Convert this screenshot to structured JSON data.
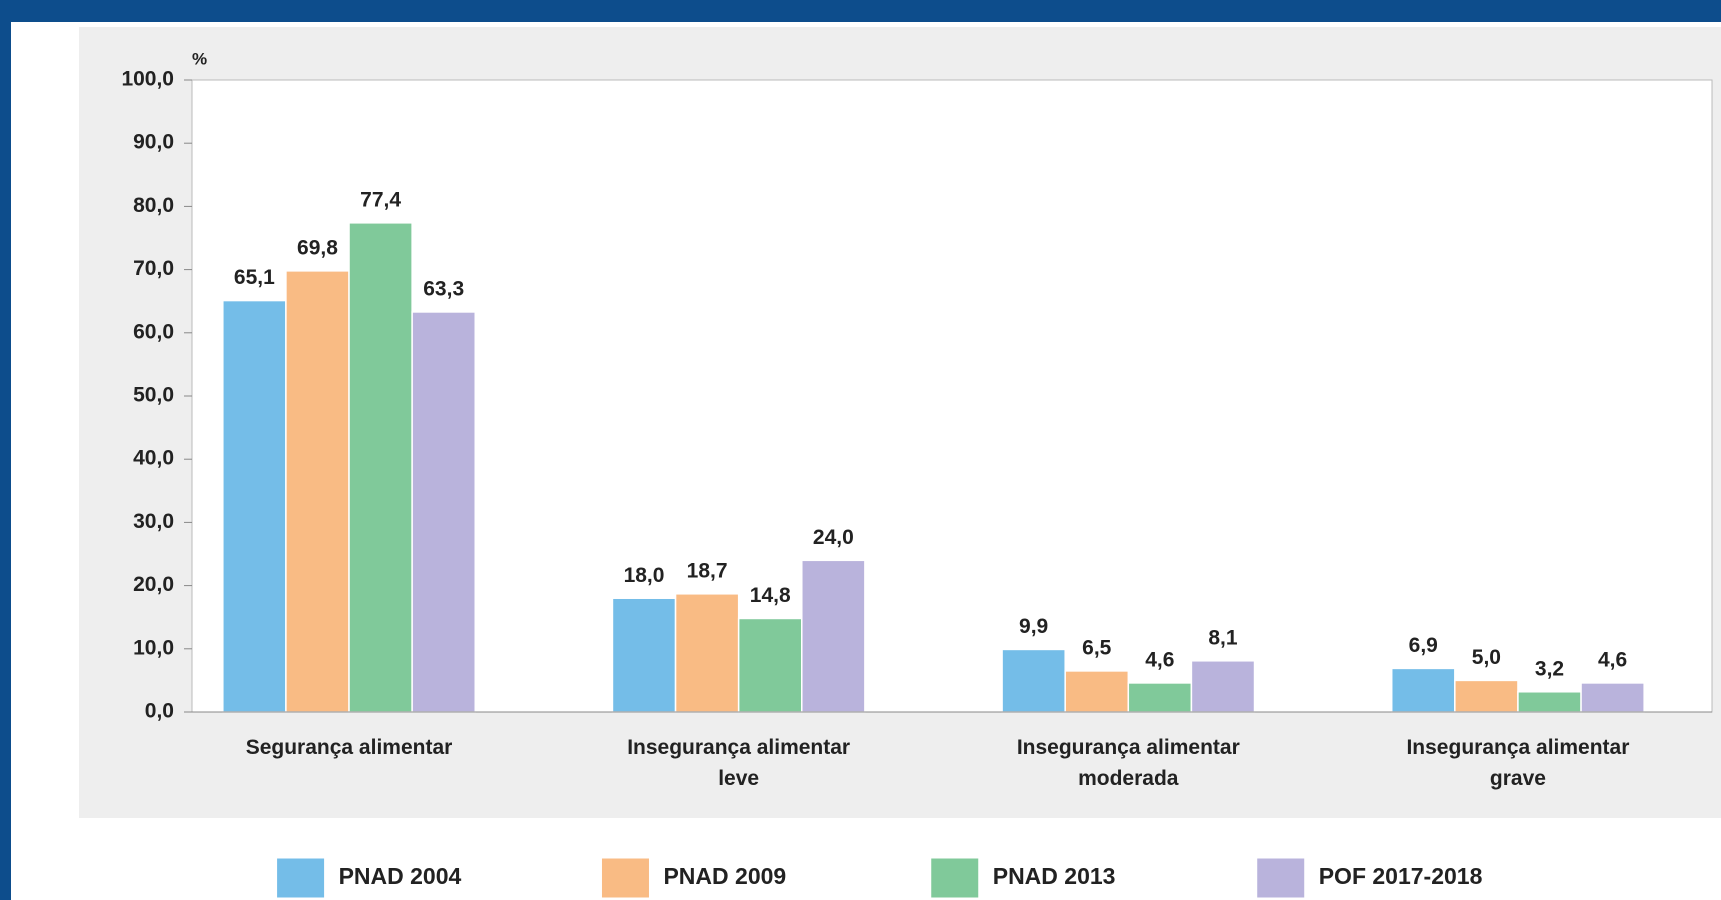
{
  "chart_data": {
    "type": "bar",
    "y_unit": "%",
    "categories": [
      "Segurança alimentar",
      "Insegurança alimentar leve",
      "Insegurança alimentar moderada",
      "Insegurança alimentar grave"
    ],
    "series": [
      {
        "name": "PNAD 2004",
        "color": "#74bde8",
        "values": [
          65.1,
          18.0,
          9.9,
          6.9
        ],
        "value_labels": [
          "65,1",
          "18,0",
          "9,9",
          "6,9"
        ]
      },
      {
        "name": "PNAD 2009",
        "color": "#f9bb84",
        "values": [
          69.8,
          18.7,
          6.5,
          5.0
        ],
        "value_labels": [
          "69,8",
          "18,7",
          "6,5",
          "5,0"
        ]
      },
      {
        "name": "PNAD 2013",
        "color": "#80c99a",
        "values": [
          77.4,
          14.8,
          4.6,
          3.2
        ],
        "value_labels": [
          "77,4",
          "14,8",
          "4,6",
          "3,2"
        ]
      },
      {
        "name": "POF 2017-2018",
        "color": "#b9b3dc",
        "values": [
          63.3,
          24.0,
          8.1,
          4.6
        ],
        "value_labels": [
          "63,3",
          "24,0",
          "8,1",
          "4,6"
        ]
      }
    ],
    "ylim": [
      0,
      100
    ],
    "yticks": [
      {
        "value": 0,
        "label": "0,0"
      },
      {
        "value": 10,
        "label": "10,0"
      },
      {
        "value": 20,
        "label": "20,0"
      },
      {
        "value": 30,
        "label": "30,0"
      },
      {
        "value": 40,
        "label": "40,0"
      },
      {
        "value": 50,
        "label": "50,0"
      },
      {
        "value": 60,
        "label": "60,0"
      },
      {
        "value": 70,
        "label": "70,0"
      },
      {
        "value": 80,
        "label": "80,0"
      },
      {
        "value": 90,
        "label": "90,0"
      },
      {
        "value": 100,
        "label": "100,0"
      }
    ],
    "grid": false,
    "legend": "bottom"
  }
}
